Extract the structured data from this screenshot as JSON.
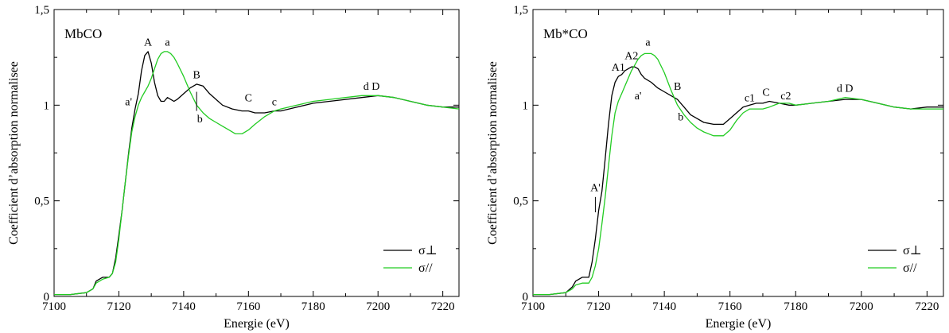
{
  "chart_data": [
    {
      "type": "line",
      "title": "MbCO",
      "xlabel": "Energie (eV)",
      "ylabel": "Coefficient d’absorption normalisee",
      "xlim": [
        7100,
        7225
      ],
      "ylim": [
        0,
        1.5
      ],
      "xticks": [
        7100,
        7120,
        7140,
        7160,
        7180,
        7200,
        7220
      ],
      "xtick_labels": [
        "7100",
        "7120",
        "7140",
        "7160",
        "7180",
        "7200",
        "7220"
      ],
      "yticks": [
        0,
        0.5,
        1,
        1.5
      ],
      "ytick_labels": [
        "0",
        "0,5",
        "1",
        "1,5"
      ],
      "grid": false,
      "legend_position": "bottom-right",
      "series": [
        {
          "name": "σ⊥",
          "color": "#000000",
          "points": [
            [
              7100,
              0.01
            ],
            [
              7105,
              0.01
            ],
            [
              7110,
              0.02
            ],
            [
              7112,
              0.04
            ],
            [
              7113,
              0.08
            ],
            [
              7115,
              0.1
            ],
            [
              7117,
              0.1
            ],
            [
              7118,
              0.12
            ],
            [
              7119,
              0.2
            ],
            [
              7120,
              0.32
            ],
            [
              7121,
              0.45
            ],
            [
              7122,
              0.6
            ],
            [
              7123,
              0.75
            ],
            [
              7124,
              0.88
            ],
            [
              7125,
              0.98
            ],
            [
              7126,
              1.06
            ],
            [
              7127,
              1.18
            ],
            [
              7128,
              1.26
            ],
            [
              7129,
              1.28
            ],
            [
              7130,
              1.22
            ],
            [
              7131,
              1.12
            ],
            [
              7132,
              1.05
            ],
            [
              7133,
              1.02
            ],
            [
              7134,
              1.02
            ],
            [
              7135,
              1.04
            ],
            [
              7136,
              1.03
            ],
            [
              7137,
              1.02
            ],
            [
              7138,
              1.03
            ],
            [
              7140,
              1.06
            ],
            [
              7142,
              1.09
            ],
            [
              7144,
              1.11
            ],
            [
              7146,
              1.1
            ],
            [
              7148,
              1.06
            ],
            [
              7150,
              1.03
            ],
            [
              7152,
              1.0
            ],
            [
              7155,
              0.98
            ],
            [
              7158,
              0.97
            ],
            [
              7160,
              0.97
            ],
            [
              7162,
              0.96
            ],
            [
              7165,
              0.96
            ],
            [
              7168,
              0.97
            ],
            [
              7170,
              0.97
            ],
            [
              7175,
              0.99
            ],
            [
              7180,
              1.01
            ],
            [
              7185,
              1.02
            ],
            [
              7190,
              1.03
            ],
            [
              7195,
              1.04
            ],
            [
              7200,
              1.05
            ],
            [
              7205,
              1.04
            ],
            [
              7210,
              1.02
            ],
            [
              7215,
              1.0
            ],
            [
              7220,
              0.99
            ],
            [
              7225,
              0.99
            ]
          ]
        },
        {
          "name": "σ//",
          "color": "#22cc22",
          "points": [
            [
              7100,
              0.01
            ],
            [
              7105,
              0.01
            ],
            [
              7110,
              0.02
            ],
            [
              7112,
              0.04
            ],
            [
              7113,
              0.07
            ],
            [
              7115,
              0.09
            ],
            [
              7117,
              0.1
            ],
            [
              7118,
              0.12
            ],
            [
              7119,
              0.18
            ],
            [
              7120,
              0.3
            ],
            [
              7121,
              0.45
            ],
            [
              7122,
              0.6
            ],
            [
              7123,
              0.74
            ],
            [
              7124,
              0.86
            ],
            [
              7125,
              0.94
            ],
            [
              7126,
              1.0
            ],
            [
              7127,
              1.04
            ],
            [
              7128,
              1.07
            ],
            [
              7129,
              1.1
            ],
            [
              7130,
              1.14
            ],
            [
              7131,
              1.19
            ],
            [
              7132,
              1.24
            ],
            [
              7133,
              1.27
            ],
            [
              7134,
              1.28
            ],
            [
              7135,
              1.28
            ],
            [
              7136,
              1.27
            ],
            [
              7137,
              1.25
            ],
            [
              7138,
              1.22
            ],
            [
              7140,
              1.15
            ],
            [
              7142,
              1.07
            ],
            [
              7144,
              1.0
            ],
            [
              7146,
              0.96
            ],
            [
              7148,
              0.93
            ],
            [
              7150,
              0.91
            ],
            [
              7152,
              0.89
            ],
            [
              7154,
              0.87
            ],
            [
              7156,
              0.85
            ],
            [
              7158,
              0.85
            ],
            [
              7160,
              0.87
            ],
            [
              7162,
              0.9
            ],
            [
              7165,
              0.94
            ],
            [
              7168,
              0.97
            ],
            [
              7170,
              0.98
            ],
            [
              7175,
              1.0
            ],
            [
              7180,
              1.02
            ],
            [
              7185,
              1.03
            ],
            [
              7190,
              1.04
            ],
            [
              7195,
              1.05
            ],
            [
              7200,
              1.05
            ],
            [
              7205,
              1.04
            ],
            [
              7210,
              1.02
            ],
            [
              7215,
              1.0
            ],
            [
              7220,
              0.99
            ],
            [
              7225,
              0.98
            ]
          ]
        }
      ],
      "annotations": [
        {
          "text": "A",
          "x": 7129,
          "y": 1.31
        },
        {
          "text": "a",
          "x": 7135,
          "y": 1.31
        },
        {
          "text": "B",
          "x": 7144,
          "y": 1.14
        },
        {
          "text": "C",
          "x": 7160,
          "y": 1.02
        },
        {
          "text": "c",
          "x": 7168,
          "y": 1.0
        },
        {
          "text": "d D",
          "x": 7198,
          "y": 1.08
        },
        {
          "text": "a'",
          "x": 7123,
          "y": 1.0
        },
        {
          "text": "b",
          "x": 7145,
          "y": 0.91
        }
      ]
    },
    {
      "type": "line",
      "title": "Mb*CO",
      "xlabel": "Energie (eV)",
      "ylabel": "Coefficient d’absorption normalisee",
      "xlim": [
        7100,
        7225
      ],
      "ylim": [
        0,
        1.5
      ],
      "xticks": [
        7100,
        7120,
        7140,
        7160,
        7180,
        7200,
        7220
      ],
      "xtick_labels": [
        "7100",
        "7120",
        "7140",
        "7160",
        "7180",
        "7200",
        "7220"
      ],
      "yticks": [
        0,
        0.5,
        1,
        1.5
      ],
      "ytick_labels": [
        "0",
        "0,5",
        "1",
        "1,5"
      ],
      "grid": false,
      "legend_position": "bottom-right",
      "series": [
        {
          "name": "σ⊥",
          "color": "#000000",
          "points": [
            [
              7100,
              0.01
            ],
            [
              7105,
              0.01
            ],
            [
              7110,
              0.02
            ],
            [
              7112,
              0.05
            ],
            [
              7113,
              0.08
            ],
            [
              7115,
              0.1
            ],
            [
              7117,
              0.1
            ],
            [
              7118,
              0.18
            ],
            [
              7119,
              0.3
            ],
            [
              7120,
              0.45
            ],
            [
              7121,
              0.55
            ],
            [
              7122,
              0.72
            ],
            [
              7123,
              0.9
            ],
            [
              7124,
              1.05
            ],
            [
              7125,
              1.12
            ],
            [
              7126,
              1.15
            ],
            [
              7127,
              1.16
            ],
            [
              7128,
              1.18
            ],
            [
              7129,
              1.19
            ],
            [
              7130,
              1.2
            ],
            [
              7131,
              1.2
            ],
            [
              7132,
              1.19
            ],
            [
              7133,
              1.16
            ],
            [
              7134,
              1.14
            ],
            [
              7136,
              1.12
            ],
            [
              7138,
              1.09
            ],
            [
              7140,
              1.07
            ],
            [
              7142,
              1.05
            ],
            [
              7144,
              1.03
            ],
            [
              7146,
              0.99
            ],
            [
              7148,
              0.95
            ],
            [
              7150,
              0.93
            ],
            [
              7152,
              0.91
            ],
            [
              7155,
              0.9
            ],
            [
              7158,
              0.9
            ],
            [
              7160,
              0.93
            ],
            [
              7162,
              0.96
            ],
            [
              7164,
              0.99
            ],
            [
              7166,
              1.0
            ],
            [
              7168,
              1.01
            ],
            [
              7170,
              1.01
            ],
            [
              7172,
              1.02
            ],
            [
              7175,
              1.01
            ],
            [
              7178,
              1.0
            ],
            [
              7180,
              1.0
            ],
            [
              7185,
              1.01
            ],
            [
              7190,
              1.02
            ],
            [
              7195,
              1.03
            ],
            [
              7200,
              1.03
            ],
            [
              7205,
              1.01
            ],
            [
              7210,
              0.99
            ],
            [
              7215,
              0.98
            ],
            [
              7220,
              0.99
            ],
            [
              7225,
              0.99
            ]
          ]
        },
        {
          "name": "σ//",
          "color": "#22cc22",
          "points": [
            [
              7100,
              0.01
            ],
            [
              7105,
              0.01
            ],
            [
              7110,
              0.02
            ],
            [
              7112,
              0.04
            ],
            [
              7113,
              0.06
            ],
            [
              7115,
              0.07
            ],
            [
              7117,
              0.07
            ],
            [
              7118,
              0.1
            ],
            [
              7119,
              0.16
            ],
            [
              7120,
              0.25
            ],
            [
              7121,
              0.38
            ],
            [
              7122,
              0.52
            ],
            [
              7123,
              0.68
            ],
            [
              7124,
              0.84
            ],
            [
              7125,
              0.96
            ],
            [
              7126,
              1.02
            ],
            [
              7127,
              1.06
            ],
            [
              7128,
              1.1
            ],
            [
              7129,
              1.14
            ],
            [
              7130,
              1.18
            ],
            [
              7131,
              1.21
            ],
            [
              7132,
              1.24
            ],
            [
              7133,
              1.26
            ],
            [
              7134,
              1.27
            ],
            [
              7136,
              1.27
            ],
            [
              7137,
              1.26
            ],
            [
              7138,
              1.24
            ],
            [
              7140,
              1.17
            ],
            [
              7142,
              1.08
            ],
            [
              7144,
              1.0
            ],
            [
              7146,
              0.95
            ],
            [
              7148,
              0.91
            ],
            [
              7150,
              0.88
            ],
            [
              7152,
              0.86
            ],
            [
              7155,
              0.84
            ],
            [
              7158,
              0.84
            ],
            [
              7160,
              0.87
            ],
            [
              7162,
              0.92
            ],
            [
              7164,
              0.96
            ],
            [
              7166,
              0.98
            ],
            [
              7168,
              0.98
            ],
            [
              7170,
              0.98
            ],
            [
              7172,
              0.99
            ],
            [
              7175,
              1.01
            ],
            [
              7178,
              1.01
            ],
            [
              7180,
              1.0
            ],
            [
              7185,
              1.01
            ],
            [
              7190,
              1.02
            ],
            [
              7195,
              1.04
            ],
            [
              7200,
              1.03
            ],
            [
              7205,
              1.01
            ],
            [
              7210,
              0.99
            ],
            [
              7215,
              0.98
            ],
            [
              7220,
              0.98
            ],
            [
              7225,
              0.98
            ]
          ]
        }
      ],
      "annotations": [
        {
          "text": "a",
          "x": 7135,
          "y": 1.31
        },
        {
          "text": "A2",
          "x": 7130,
          "y": 1.24
        },
        {
          "text": "A1",
          "x": 7126,
          "y": 1.18
        },
        {
          "text": "a'",
          "x": 7132,
          "y": 1.03
        },
        {
          "text": "B",
          "x": 7144,
          "y": 1.08
        },
        {
          "text": "b",
          "x": 7145,
          "y": 0.92
        },
        {
          "text": "c1",
          "x": 7166,
          "y": 1.02
        },
        {
          "text": "C",
          "x": 7171,
          "y": 1.05
        },
        {
          "text": "c2",
          "x": 7177,
          "y": 1.03
        },
        {
          "text": "d D",
          "x": 7195,
          "y": 1.07
        },
        {
          "text": "A'",
          "x": 7119,
          "y": 0.55
        }
      ]
    }
  ]
}
